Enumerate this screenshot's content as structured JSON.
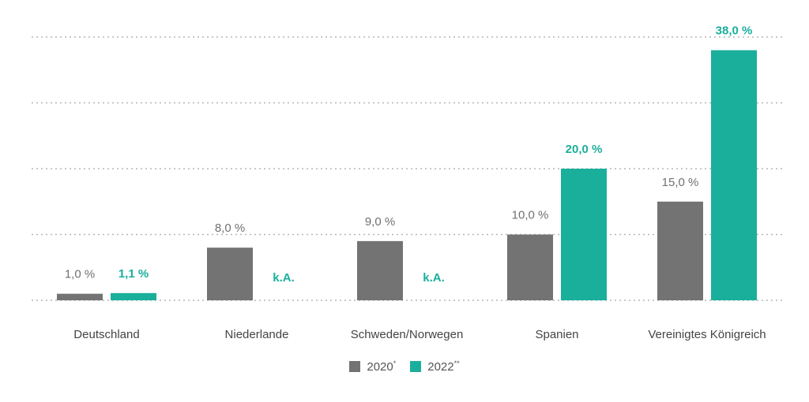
{
  "chart_data": {
    "type": "bar",
    "categories": [
      "Deutschland",
      "Niederlande",
      "Schweden/Norwegen",
      "Spanien",
      "Vereinigtes Königreich"
    ],
    "series": [
      {
        "name": "2020",
        "superscript": "*",
        "color": "#737373",
        "values": [
          1.0,
          8.0,
          9.0,
          10.0,
          15.0
        ],
        "labels": [
          "1,0 %",
          "8,0 %",
          "9,0 %",
          "10,0 %",
          "15,0 %"
        ]
      },
      {
        "name": "2022",
        "superscript": "**",
        "color": "#1aaf9b",
        "values": [
          1.1,
          null,
          null,
          20.0,
          38.0
        ],
        "labels": [
          "1,1 %",
          "k.A.",
          "k.A.",
          "20,0 %",
          "38,0 %"
        ]
      }
    ],
    "ylim": [
      0,
      40
    ],
    "grid": true,
    "legend_position": "bottom-center"
  }
}
